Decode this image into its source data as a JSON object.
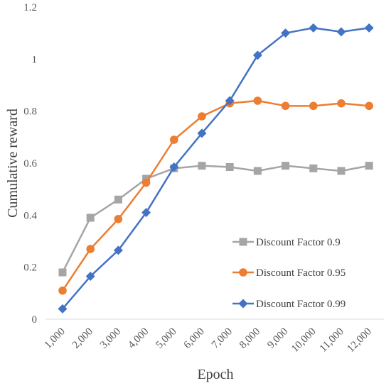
{
  "chart_data": {
    "type": "line",
    "title": "",
    "xlabel": "Epoch",
    "ylabel": "Cumulative reward",
    "categories": [
      "1,000",
      "2,000",
      "3,000",
      "4,000",
      "5,000",
      "6,000",
      "7,000",
      "8,000",
      "9,000",
      "10,000",
      "11,000",
      "12,000"
    ],
    "yticks": [
      "0",
      "0.2",
      "0.4",
      "0.6",
      "0.8",
      "1",
      "1.2"
    ],
    "ylim": [
      0,
      1.2
    ],
    "grid": false,
    "legend_position": "right",
    "series": [
      {
        "name": "Discount Factor 0.9",
        "color": "#a5a5a5",
        "marker": "square",
        "values": [
          0.18,
          0.39,
          0.46,
          0.54,
          0.58,
          0.59,
          0.585,
          0.57,
          0.59,
          0.58,
          0.57,
          0.59
        ]
      },
      {
        "name": "Discount Factor 0.95",
        "color": "#ed7d31",
        "marker": "circle",
        "values": [
          0.11,
          0.27,
          0.385,
          0.525,
          0.69,
          0.78,
          0.83,
          0.84,
          0.82,
          0.82,
          0.83,
          0.82
        ]
      },
      {
        "name": "Discount Factor 0.99",
        "color": "#4472c4",
        "marker": "diamond",
        "values": [
          0.04,
          0.165,
          0.265,
          0.41,
          0.585,
          0.715,
          0.84,
          1.015,
          1.1,
          1.12,
          1.105,
          1.12
        ]
      }
    ]
  }
}
